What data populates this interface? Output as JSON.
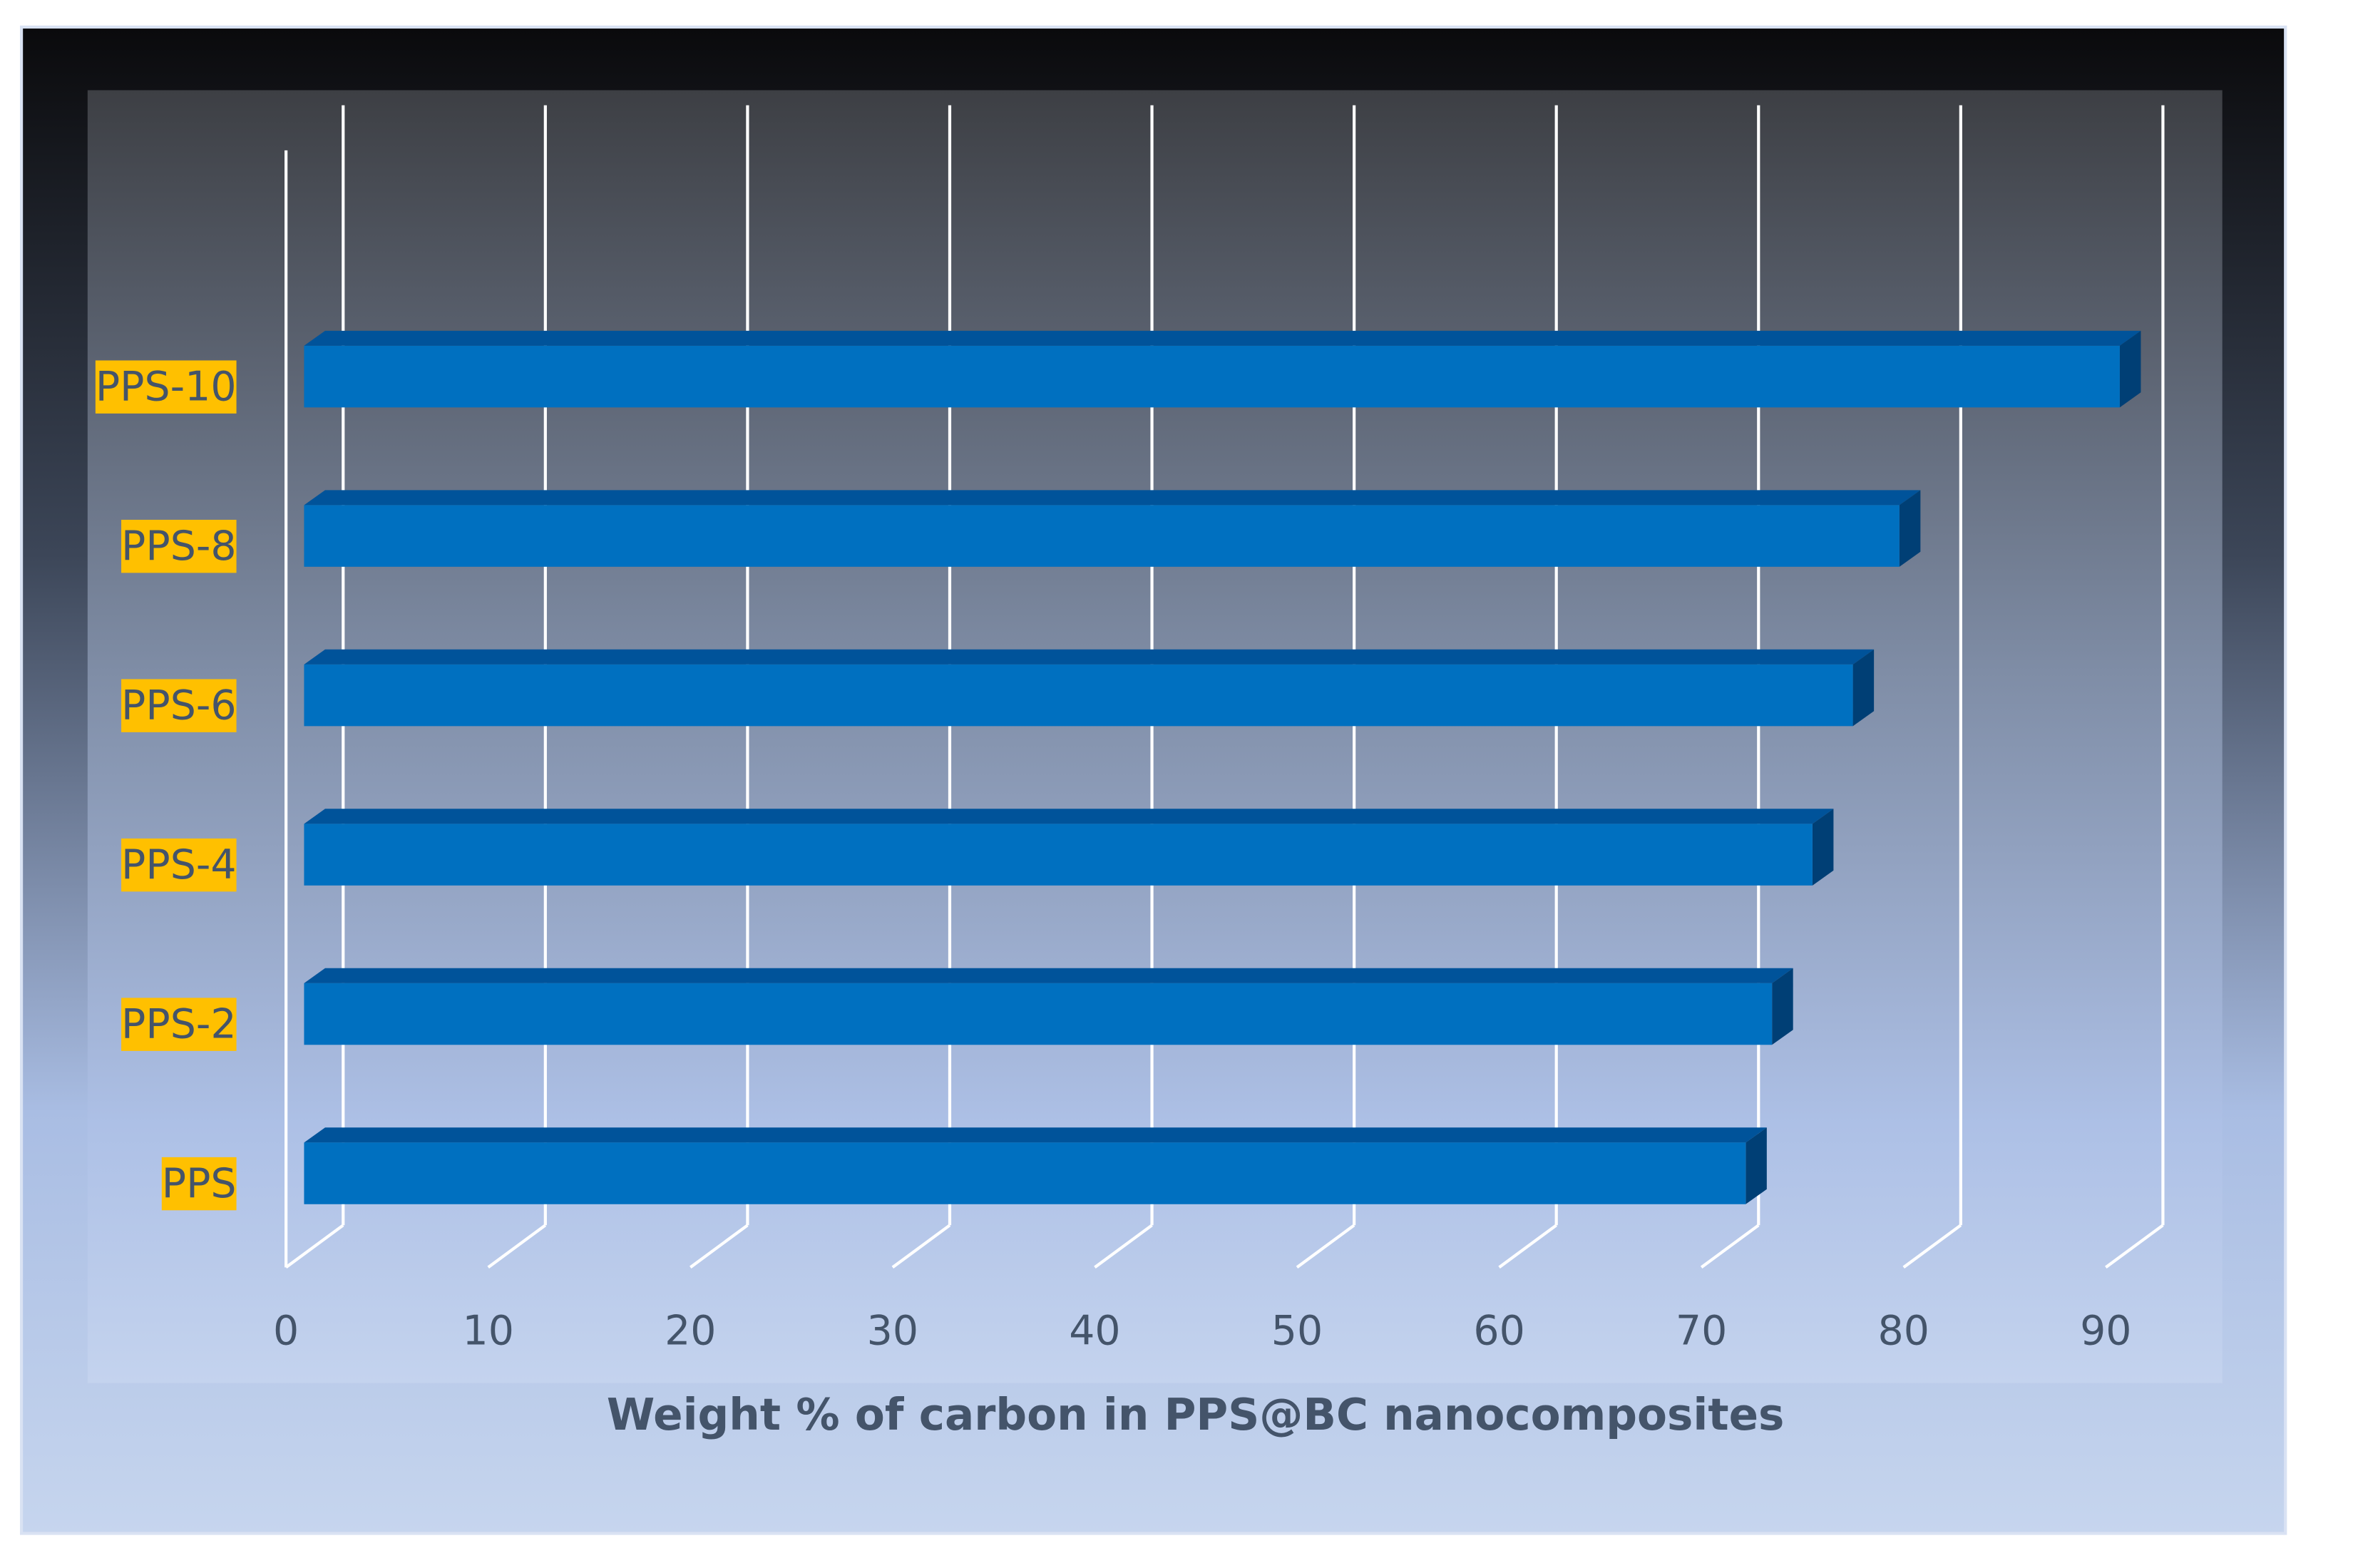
{
  "chart_data": {
    "type": "bar",
    "orientation": "horizontal",
    "categories": [
      "PPS",
      "PPS-2",
      "PPS-4",
      "PPS-6",
      "PPS-8",
      "PPS-10"
    ],
    "values": [
      71.3,
      72.6,
      74.6,
      76.6,
      78.9,
      89.8
    ],
    "color": "#0070c0",
    "xlabel": "Weight  % of carbon in PPS@BC nanocomposites",
    "xlim": [
      0,
      90
    ],
    "xticks": [
      0,
      10,
      20,
      30,
      40,
      50,
      60,
      70,
      80,
      90
    ],
    "grid": true
  }
}
